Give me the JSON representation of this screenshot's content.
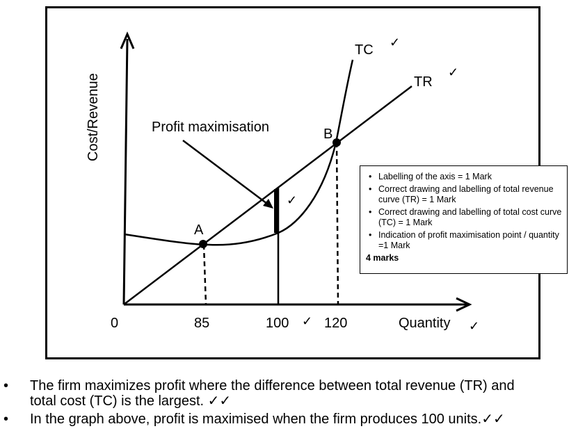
{
  "axis_labels": {
    "y": "Cost/Revenue",
    "x": "Quantity"
  },
  "curves": {
    "tc": "TC",
    "tr": "TR"
  },
  "points": {
    "a": "A",
    "b": "B"
  },
  "annotation": "Profit maximisation",
  "ticks": [
    "0",
    "85",
    "100",
    "120"
  ],
  "check_mark": "✓",
  "marking_scheme": {
    "items": [
      "Labelling of the axis  = 1 Mark",
      "Correct drawing and labelling of total revenue curve (TR) = 1 Mark",
      "Correct drawing and labelling of total cost curve (TC) = 1 Mark",
      "Indication of profit maximisation  point / quantity  =1 Mark"
    ],
    "total": "4 marks"
  },
  "notes": [
    "The firm maximizes profit where the difference between total revenue (TR) and total cost (TC) is the largest. ✓✓",
    "In the graph above, profit is maximised when the firm produces 100 units.✓✓"
  ],
  "bullet": "•"
}
